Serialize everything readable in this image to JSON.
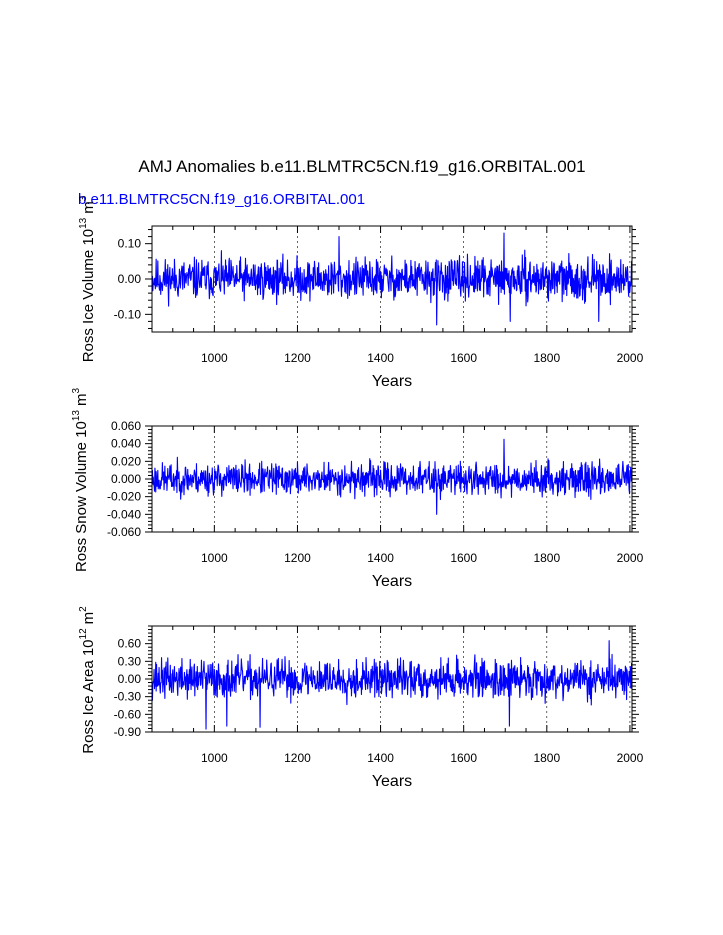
{
  "figure": {
    "title": "AMJ Anomalies b.e11.BLMTRC5CN.f19_g16.ORBITAL.001",
    "subtitle": "b.e11.BLMTRC5CN.f19_g16.ORBITAL.001",
    "subtitle_color": "#0000ff",
    "line_color": "#0000ff"
  },
  "chart_data": [
    {
      "type": "line",
      "ylabel_prefix": "Ross Ice Volume 10",
      "ylabel_exp": "13",
      "ylabel_unit": "m",
      "ylabel_unit_exp": "3",
      "xlabel": "Years",
      "xlim": [
        850,
        2005
      ],
      "ylim": [
        -0.15,
        0.15
      ],
      "xticks": [
        1000,
        1200,
        1400,
        1600,
        1800,
        2000
      ],
      "xtick_labels": [
        "1000",
        "1200",
        "1400",
        "1600",
        "1800",
        "2000"
      ],
      "yticks": [
        0.1,
        0.0,
        -0.1
      ],
      "ytick_labels": [
        "0.10",
        "0.00",
        "-0.10"
      ],
      "grid": "dashed vertical lines at x ticks",
      "amplitude": 0.035,
      "seed": 11,
      "series": [
        {
          "x": [
            850,
            1000,
            1080,
            1200,
            1300,
            1400,
            1535,
            1600,
            1697,
            1712,
            1800,
            1925,
            2005
          ],
          "y": [
            0.0,
            0.0,
            -0.01,
            0.0,
            0.12,
            0.01,
            -0.13,
            0.0,
            0.13,
            -0.12,
            0.01,
            -0.12,
            0.02
          ]
        }
      ]
    },
    {
      "type": "line",
      "ylabel_prefix": "Ross Snow Volume 10",
      "ylabel_exp": "13",
      "ylabel_unit": "m",
      "ylabel_unit_exp": "3",
      "xlabel": "Years",
      "xlim": [
        850,
        2005
      ],
      "ylim": [
        -0.06,
        0.06
      ],
      "xticks": [
        1000,
        1200,
        1400,
        1600,
        1800,
        2000
      ],
      "xtick_labels": [
        "1000",
        "1200",
        "1400",
        "1600",
        "1800",
        "2000"
      ],
      "yticks": [
        0.06,
        0.04,
        0.02,
        0.0,
        -0.02,
        -0.04,
        -0.06
      ],
      "ytick_labels": [
        "0.060",
        "0.040",
        "0.020",
        "0.000",
        "-0.020",
        "-0.040",
        "-0.060"
      ],
      "grid": "dashed vertical lines at x ticks",
      "amplitude": 0.011,
      "seed": 23,
      "series": [
        {
          "x": [
            850,
            1000,
            1200,
            1400,
            1535,
            1600,
            1697,
            1800,
            2005
          ],
          "y": [
            0.0,
            0.0,
            0.0,
            0.01,
            -0.04,
            0.0,
            0.045,
            0.005,
            0.01
          ]
        }
      ]
    },
    {
      "type": "line",
      "ylabel_prefix": "Ross Ice Area 10",
      "ylabel_exp": "12",
      "ylabel_unit": "m",
      "ylabel_unit_exp": "2",
      "xlabel": "Years",
      "xlim": [
        850,
        2005
      ],
      "ylim": [
        -0.9,
        0.9
      ],
      "xticks": [
        1000,
        1200,
        1400,
        1600,
        1800,
        2000
      ],
      "xtick_labels": [
        "1000",
        "1200",
        "1400",
        "1600",
        "1800",
        "2000"
      ],
      "yticks": [
        0.6,
        0.3,
        0.0,
        -0.3,
        -0.6,
        -0.9
      ],
      "ytick_labels": [
        "0.60",
        "0.30",
        "0.00",
        "-0.30",
        "-0.60",
        "-0.90"
      ],
      "grid": "dashed vertical lines at x ticks",
      "amplitude": 0.2,
      "seed": 37,
      "series": [
        {
          "x": [
            850,
            980,
            1030,
            1110,
            1200,
            1400,
            1600,
            1710,
            1800,
            1950,
            2005
          ],
          "y": [
            0.0,
            -0.85,
            -0.8,
            -0.82,
            -0.1,
            0.05,
            0.0,
            -0.8,
            0.05,
            0.65,
            0.05
          ]
        }
      ]
    }
  ]
}
